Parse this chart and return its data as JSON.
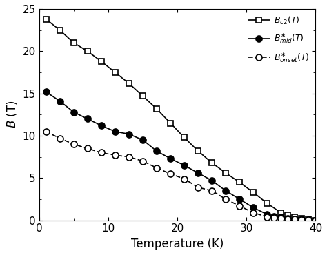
{
  "title": "",
  "xlabel": "Temperature (K)",
  "ylabel": "$B$ (T)",
  "xlim": [
    0,
    40
  ],
  "ylim": [
    0,
    25
  ],
  "xticks": [
    0,
    10,
    20,
    30,
    40
  ],
  "yticks": [
    0,
    5,
    10,
    15,
    20,
    25
  ],
  "bc2_T": [
    1,
    3,
    5,
    7,
    9,
    11,
    13,
    15,
    17,
    19,
    21,
    23,
    25,
    27,
    29,
    31,
    33,
    35,
    36,
    37,
    38,
    39,
    40
  ],
  "bc2_B": [
    23.8,
    22.5,
    21.0,
    20.0,
    18.8,
    17.5,
    16.2,
    14.7,
    13.2,
    11.5,
    9.8,
    8.2,
    6.8,
    5.6,
    4.5,
    3.3,
    2.0,
    0.9,
    0.6,
    0.4,
    0.2,
    0.1,
    0.0
  ],
  "bmid_T": [
    1,
    3,
    5,
    7,
    9,
    11,
    13,
    15,
    17,
    19,
    21,
    23,
    25,
    27,
    29,
    31,
    33,
    34,
    35,
    36,
    37,
    38,
    39,
    40
  ],
  "bmid_B": [
    15.2,
    14.1,
    12.8,
    12.0,
    11.2,
    10.5,
    10.2,
    9.5,
    8.2,
    7.3,
    6.5,
    5.6,
    4.7,
    3.5,
    2.5,
    1.5,
    0.7,
    0.5,
    0.35,
    0.2,
    0.15,
    0.1,
    0.05,
    0.0
  ],
  "bonset_T": [
    1,
    3,
    5,
    7,
    9,
    11,
    13,
    15,
    17,
    19,
    21,
    23,
    25,
    27,
    29,
    31,
    33,
    34,
    35,
    36,
    37,
    38,
    39,
    40
  ],
  "bonset_B": [
    10.5,
    9.7,
    9.0,
    8.5,
    8.0,
    7.7,
    7.5,
    7.0,
    6.2,
    5.5,
    4.9,
    3.9,
    3.5,
    2.5,
    1.7,
    0.9,
    0.4,
    0.3,
    0.2,
    0.15,
    0.1,
    0.05,
    0.02,
    0.0
  ],
  "legend_label_bc2": "$B_{c2}(T)$",
  "legend_label_bmid": "$B^{\\ast}_{mid}(T)$",
  "legend_label_bonset": "$B^{\\ast}_{onset}(T)$"
}
